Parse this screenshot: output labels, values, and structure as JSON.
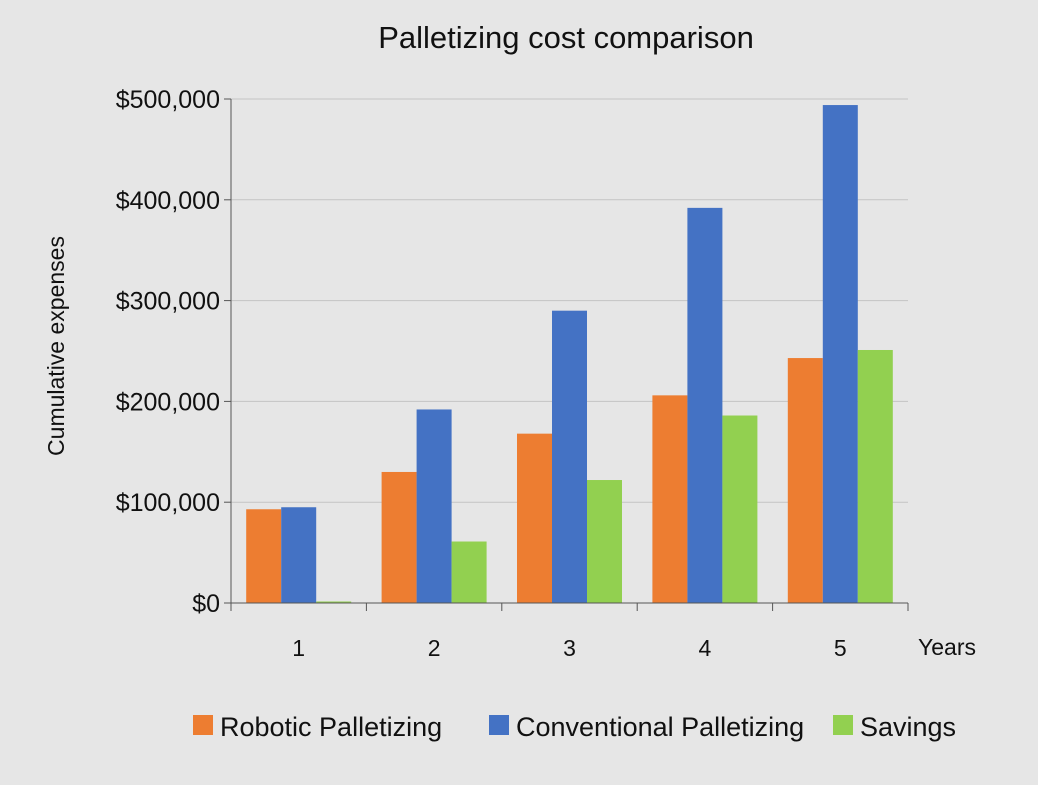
{
  "chart_data": {
    "type": "bar",
    "title": "Palletizing cost comparison",
    "xlabel": "Years",
    "ylabel": "Cumulative expenses",
    "categories": [
      "1",
      "2",
      "3",
      "4",
      "5"
    ],
    "ylim": [
      0,
      500000
    ],
    "yticks": [
      0,
      100000,
      200000,
      300000,
      400000,
      500000
    ],
    "ytick_labels": [
      "$0",
      "$100,000",
      "$200,000",
      "$300,000",
      "$400,000",
      "$500,000"
    ],
    "grid": true,
    "legend_position": "bottom",
    "series": [
      {
        "name": "Robotic Palletizing",
        "color": "#ed7d31",
        "values": [
          93000,
          130000,
          168000,
          206000,
          243000
        ]
      },
      {
        "name": "Conventional Palletizing",
        "color": "#4472c4",
        "values": [
          95000,
          192000,
          290000,
          392000,
          494000
        ]
      },
      {
        "name": "Savings",
        "color": "#92d050",
        "values": [
          1500,
          61000,
          122000,
          186000,
          251000
        ]
      }
    ]
  }
}
